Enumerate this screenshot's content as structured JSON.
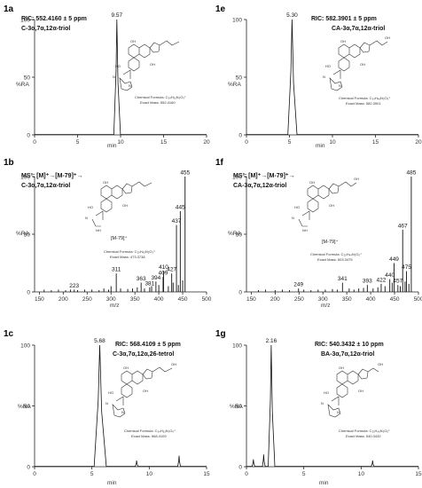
{
  "panels": [
    {
      "id": "1a",
      "label": "1a",
      "ann": [
        "RIC: 552.4160 ± 5 ppm",
        "C-3α,7α,12α-triol"
      ],
      "ylabel": "%RA",
      "xlabel": "min",
      "formula": "Chemical Formula: C₃₄H₅₁N₃O₃⁺",
      "mass": "Exact Mass: 552.4160"
    },
    {
      "id": "1e",
      "label": "1e",
      "ann": [
        "RIC: 582.3901 ± 5 ppm",
        "CA-3α,7α,12α-triol"
      ],
      "ylabel": "%RA",
      "xlabel": "min",
      "formula": "Chemical Formula: C₃₄H₄₈N₃O₅⁺",
      "mass": "Exact Mass: 582.3901"
    },
    {
      "id": "1b",
      "label": "1b",
      "ann": [
        "MS³: [M]⁺→[M-79]⁺→",
        "C-3α,7α,12α-triol"
      ],
      "ylabel": "%RA",
      "xlabel": "m/z",
      "ion": "[M-79]⁺",
      "formula": "Chemical Formula: C₂₉H₄₅N₂O₃⁺",
      "mass": "Exact Mass: 473.3738"
    },
    {
      "id": "1f",
      "label": "1f",
      "ann": [
        "MS³: [M]⁺→[M-79]⁺→",
        "CA-3α,7α,12α-triol"
      ],
      "ylabel": "%RA",
      "xlabel": "m/z",
      "ion": "[M-79]⁺",
      "formula": "Chemical Formula: C₂₉H₄₄N₂O₅⁺",
      "mass": "Exact Mass: 503.3475"
    },
    {
      "id": "1c",
      "label": "1c",
      "ann": [
        "RIC: 568.4109 ± 5 ppm",
        "C-3α,7α,12α,26-tetrol"
      ],
      "ylabel": "%RA",
      "xlabel": "min",
      "formula": "Chemical Formula: C₃₄H₅₁N₃O₄⁺",
      "mass": "Exact Mass: 568.4109"
    },
    {
      "id": "1g",
      "label": "1g",
      "ann": [
        "RIC: 540.3432 ± 10 ppm",
        "BA-3α,7α,12α-triol"
      ],
      "ylabel": "%RA",
      "xlabel": "min",
      "formula": "Chemical Formula: C₃₁H₄₆N₃O₅⁺",
      "mass": "Exact Mass: 540.3432"
    }
  ],
  "chart_data": [
    {
      "panel": "1a",
      "type": "line",
      "xlim": [
        0,
        20
      ],
      "ylim": [
        0,
        100
      ],
      "xticks": [
        0,
        5,
        10,
        15,
        20
      ],
      "yticks": [
        0,
        50,
        100
      ],
      "peaks": [
        {
          "x": 9.57,
          "y": 100,
          "w": 0.16,
          "label": "9.57"
        }
      ]
    },
    {
      "panel": "1e",
      "type": "line",
      "xlim": [
        0,
        20
      ],
      "ylim": [
        0,
        100
      ],
      "xticks": [
        0,
        5,
        10,
        15,
        20
      ],
      "yticks": [
        0,
        50,
        100
      ],
      "peaks": [
        {
          "x": 5.3,
          "y": 100,
          "w": 0.22,
          "label": "5.30"
        }
      ]
    },
    {
      "panel": "1b",
      "type": "bar",
      "xlim": [
        140,
        500
      ],
      "ylim": [
        0,
        100
      ],
      "xticks": [
        150,
        200,
        250,
        300,
        350,
        400,
        450,
        500
      ],
      "yticks": [
        0,
        50,
        100
      ],
      "peaks": [
        {
          "x": 223,
          "y": 2,
          "label": "223"
        },
        {
          "x": 311,
          "y": 16,
          "label": "311"
        },
        {
          "x": 363,
          "y": 8,
          "label": "363"
        },
        {
          "x": 381,
          "y": 4,
          "label": "381"
        },
        {
          "x": 394,
          "y": 9,
          "label": "394"
        },
        {
          "x": 409,
          "y": 13,
          "label": "409"
        },
        {
          "x": 410,
          "y": 18,
          "label": "410"
        },
        {
          "x": 427,
          "y": 16,
          "label": "427"
        },
        {
          "x": 437,
          "y": 58,
          "label": "437"
        },
        {
          "x": 445,
          "y": 70,
          "label": "445"
        },
        {
          "x": 455,
          "y": 100,
          "label": "455"
        }
      ],
      "noise": [
        [
          160,
          2
        ],
        [
          175,
          1.5
        ],
        [
          190,
          2
        ],
        [
          205,
          1.5
        ],
        [
          215,
          2
        ],
        [
          230,
          1.5
        ],
        [
          245,
          2
        ],
        [
          260,
          2
        ],
        [
          275,
          1.5
        ],
        [
          285,
          3
        ],
        [
          295,
          2
        ],
        [
          300,
          5
        ],
        [
          320,
          3
        ],
        [
          335,
          2.5
        ],
        [
          345,
          3
        ],
        [
          355,
          4
        ],
        [
          370,
          3
        ],
        [
          385,
          5
        ],
        [
          400,
          6
        ],
        [
          420,
          5
        ],
        [
          430,
          8
        ],
        [
          441,
          6
        ],
        [
          450,
          10
        ]
      ]
    },
    {
      "panel": "1f",
      "type": "bar",
      "xlim": [
        140,
        500
      ],
      "ylim": [
        0,
        100
      ],
      "xticks": [
        150,
        200,
        250,
        300,
        350,
        400,
        450,
        500
      ],
      "yticks": [
        0,
        50,
        100
      ],
      "peaks": [
        {
          "x": 249,
          "y": 3,
          "label": "249"
        },
        {
          "x": 341,
          "y": 8,
          "label": "341"
        },
        {
          "x": 393,
          "y": 6,
          "label": "393"
        },
        {
          "x": 422,
          "y": 7,
          "label": "422"
        },
        {
          "x": 440,
          "y": 11,
          "label": "440"
        },
        {
          "x": 449,
          "y": 25,
          "label": "449"
        },
        {
          "x": 457,
          "y": 6,
          "label": "457"
        },
        {
          "x": 467,
          "y": 54,
          "label": "467"
        },
        {
          "x": 475,
          "y": 18,
          "label": "475"
        },
        {
          "x": 485,
          "y": 100,
          "label": "485"
        }
      ],
      "noise": [
        [
          165,
          1.5
        ],
        [
          180,
          2
        ],
        [
          200,
          1.5
        ],
        [
          215,
          2
        ],
        [
          230,
          1.5
        ],
        [
          260,
          2
        ],
        [
          275,
          1.5
        ],
        [
          290,
          2
        ],
        [
          305,
          2
        ],
        [
          320,
          2.5
        ],
        [
          330,
          2
        ],
        [
          355,
          3
        ],
        [
          365,
          2
        ],
        [
          375,
          3
        ],
        [
          385,
          3.5
        ],
        [
          405,
          3
        ],
        [
          415,
          4
        ],
        [
          430,
          5
        ],
        [
          445,
          8
        ],
        [
          462,
          5
        ],
        [
          472,
          9
        ],
        [
          480,
          7
        ]
      ]
    },
    {
      "panel": "1c",
      "type": "line",
      "xlim": [
        0,
        15
      ],
      "ylim": [
        0,
        100
      ],
      "xticks": [
        0,
        5,
        10,
        15
      ],
      "yticks": [
        0,
        50,
        100
      ],
      "peaks": [
        {
          "x": 5.68,
          "y": 100,
          "w": 0.22,
          "label": "5.68"
        },
        {
          "x": 8.9,
          "y": 5,
          "w": 0.05,
          "label": ""
        },
        {
          "x": 12.6,
          "y": 9,
          "w": 0.05,
          "label": ""
        }
      ]
    },
    {
      "panel": "1g",
      "type": "line",
      "xlim": [
        0,
        15
      ],
      "ylim": [
        0,
        100
      ],
      "xticks": [
        0,
        5,
        10,
        15
      ],
      "yticks": [
        0,
        50,
        100
      ],
      "peaks": [
        {
          "x": 2.16,
          "y": 100,
          "w": 0.12,
          "label": "2.16"
        },
        {
          "x": 1.5,
          "y": 10,
          "w": 0.05,
          "label": ""
        },
        {
          "x": 0.6,
          "y": 6,
          "w": 0.05,
          "label": ""
        },
        {
          "x": 11.0,
          "y": 5,
          "w": 0.05,
          "label": ""
        }
      ]
    }
  ]
}
